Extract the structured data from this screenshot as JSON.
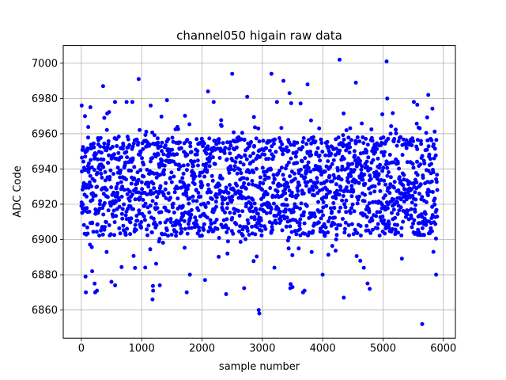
{
  "chart_data": {
    "type": "scatter",
    "title": "channel050 higain raw data",
    "xlabel": "sample number",
    "ylabel": "ADC Code",
    "xlim": [
      -300,
      6200
    ],
    "ylim": [
      6844,
      7010
    ],
    "xticks": [
      0,
      1000,
      2000,
      3000,
      4000,
      5000,
      6000
    ],
    "yticks": [
      6860,
      6880,
      6900,
      6920,
      6940,
      6960,
      6980,
      7000
    ],
    "grid": true,
    "marker_color": "#0000ff",
    "n_samples": 5900,
    "center_value": 6930,
    "core_range": [
      6902,
      6958
    ],
    "outliers": [
      {
        "x": 5,
        "y": 6976
      },
      {
        "x": 60,
        "y": 6970
      },
      {
        "x": 70,
        "y": 6879
      },
      {
        "x": 75,
        "y": 6870
      },
      {
        "x": 150,
        "y": 6975
      },
      {
        "x": 180,
        "y": 6882
      },
      {
        "x": 220,
        "y": 6875
      },
      {
        "x": 230,
        "y": 6870
      },
      {
        "x": 260,
        "y": 6871
      },
      {
        "x": 360,
        "y": 6987
      },
      {
        "x": 380,
        "y": 6969
      },
      {
        "x": 500,
        "y": 6876
      },
      {
        "x": 560,
        "y": 6874
      },
      {
        "x": 750,
        "y": 6978
      },
      {
        "x": 950,
        "y": 6991
      },
      {
        "x": 1150,
        "y": 6976
      },
      {
        "x": 1180,
        "y": 6866
      },
      {
        "x": 1190,
        "y": 6871
      },
      {
        "x": 1300,
        "y": 6874
      },
      {
        "x": 1420,
        "y": 6979
      },
      {
        "x": 1800,
        "y": 6880
      },
      {
        "x": 2050,
        "y": 6877
      },
      {
        "x": 2100,
        "y": 6984
      },
      {
        "x": 2400,
        "y": 6869
      },
      {
        "x": 2500,
        "y": 6994
      },
      {
        "x": 2750,
        "y": 6981
      },
      {
        "x": 2940,
        "y": 6860
      },
      {
        "x": 2950,
        "y": 6858
      },
      {
        "x": 3150,
        "y": 6994
      },
      {
        "x": 3200,
        "y": 6884
      },
      {
        "x": 3350,
        "y": 6990
      },
      {
        "x": 3450,
        "y": 6983
      },
      {
        "x": 3500,
        "y": 6873
      },
      {
        "x": 3700,
        "y": 6871
      },
      {
        "x": 3750,
        "y": 6988
      },
      {
        "x": 4000,
        "y": 6880
      },
      {
        "x": 4280,
        "y": 7002
      },
      {
        "x": 4350,
        "y": 6867
      },
      {
        "x": 4550,
        "y": 6989
      },
      {
        "x": 4780,
        "y": 6872
      },
      {
        "x": 5060,
        "y": 7001
      },
      {
        "x": 5070,
        "y": 6980
      },
      {
        "x": 5650,
        "y": 6852
      },
      {
        "x": 5750,
        "y": 6982
      },
      {
        "x": 5880,
        "y": 6880
      }
    ]
  }
}
